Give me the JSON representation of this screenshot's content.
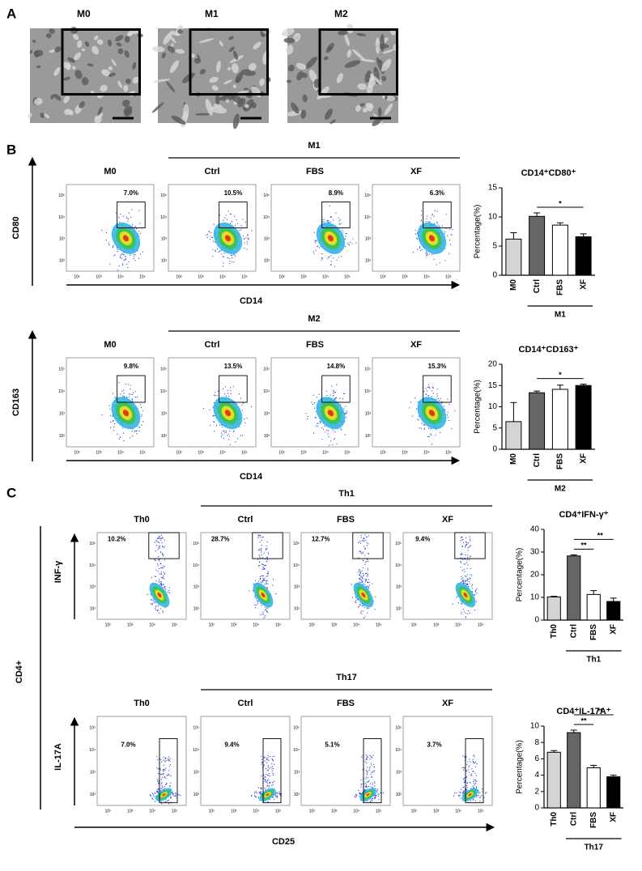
{
  "panel_a": {
    "label": "A",
    "images": [
      {
        "title": "M0"
      },
      {
        "title": "M1"
      },
      {
        "title": "M2"
      }
    ]
  },
  "panel_b": {
    "label": "B",
    "x_label": "CD14",
    "rows": [
      {
        "group": "M1",
        "y_label": "CD80",
        "plots": [
          {
            "title": "M0",
            "gate": "7.0%"
          },
          {
            "title": "Ctrl",
            "gate": "10.5%"
          },
          {
            "title": "FBS",
            "gate": "8.9%"
          },
          {
            "title": "XF",
            "gate": "6.3%"
          }
        ]
      },
      {
        "group": "M2",
        "y_label": "CD163",
        "plots": [
          {
            "title": "M0",
            "gate": "9.8%"
          },
          {
            "title": "Ctrl",
            "gate": "13.5%"
          },
          {
            "title": "FBS",
            "gate": "14.8%"
          },
          {
            "title": "XF",
            "gate": "15.3%"
          }
        ]
      }
    ]
  },
  "panel_c": {
    "label": "C",
    "side_label": "CD4+",
    "x_label": "CD25",
    "rows": [
      {
        "group": "Th1",
        "y_label": "INF-γ",
        "plots": [
          {
            "title": "Th0",
            "gate": "10.2%"
          },
          {
            "title": "Ctrl",
            "gate": "28.7%"
          },
          {
            "title": "FBS",
            "gate": "12.7%"
          },
          {
            "title": "XF",
            "gate": "9.4%"
          }
        ]
      },
      {
        "group": "Th17",
        "y_label": "IL-17A",
        "plots": [
          {
            "title": "Th0",
            "gate": "7.0%"
          },
          {
            "title": "Ctrl",
            "gate": "9.4%"
          },
          {
            "title": "FBS",
            "gate": "5.1%"
          },
          {
            "title": "XF",
            "gate": "3.7%"
          }
        ]
      }
    ]
  },
  "flow_ticks": [
    "10²",
    "10³",
    "10⁴",
    "10⁵"
  ],
  "chart_data": [
    {
      "type": "bar",
      "title": "CD14⁺CD80⁺",
      "y_label": "Percentage(%)",
      "categories": [
        "M0",
        "Ctrl",
        "FBS",
        "XF"
      ],
      "values": [
        6.2,
        10.1,
        8.6,
        6.6
      ],
      "errors": [
        1.1,
        0.6,
        0.4,
        0.5
      ],
      "colors": [
        "#d4d4d4",
        "#666666",
        "#ffffff",
        "#000000"
      ],
      "ylim": [
        0,
        15
      ],
      "yticks": [
        0,
        5,
        10,
        15
      ],
      "group": {
        "label": "M1",
        "categories": [
          "Ctrl",
          "FBS",
          "XF"
        ]
      },
      "significance": [
        {
          "label": "*",
          "pair": [
            "Ctrl",
            "XF"
          ]
        }
      ]
    },
    {
      "type": "bar",
      "title": "CD14⁺CD163⁺",
      "y_label": "Percentage(%)",
      "categories": [
        "M0",
        "Ctrl",
        "FBS",
        "XF"
      ],
      "values": [
        6.5,
        13.3,
        14.1,
        15.0
      ],
      "errors": [
        4.5,
        0.4,
        1.0,
        0.3
      ],
      "colors": [
        "#d4d4d4",
        "#666666",
        "#ffffff",
        "#000000"
      ],
      "ylim": [
        0,
        20
      ],
      "yticks": [
        0,
        5,
        10,
        15,
        20
      ],
      "group": {
        "label": "M2",
        "categories": [
          "Ctrl",
          "FBS",
          "XF"
        ]
      },
      "significance": [
        {
          "label": "*",
          "pair": [
            "Ctrl",
            "XF"
          ]
        }
      ]
    },
    {
      "type": "bar",
      "title": "CD4⁺IFN-γ⁺",
      "y_label": "Percentage(%)",
      "categories": [
        "Th0",
        "Ctrl",
        "FBS",
        "XF"
      ],
      "values": [
        10.2,
        28.3,
        11.3,
        8.2
      ],
      "errors": [
        0.3,
        0.5,
        1.7,
        1.5
      ],
      "colors": [
        "#d4d4d4",
        "#666666",
        "#ffffff",
        "#000000"
      ],
      "ylim": [
        0,
        40
      ],
      "yticks": [
        0,
        10,
        20,
        30,
        40
      ],
      "group": {
        "label": "Th1",
        "categories": [
          "Ctrl",
          "FBS",
          "XF"
        ]
      },
      "significance": [
        {
          "label": "**",
          "pair": [
            "Ctrl",
            "FBS"
          ]
        },
        {
          "label": "**",
          "pair": [
            "Ctrl",
            "XF"
          ]
        }
      ]
    },
    {
      "type": "bar",
      "title": "CD4⁺IL-17A⁺",
      "y_label": "Percentage(%)",
      "categories": [
        "Th0",
        "Ctrl",
        "FBS",
        "XF"
      ],
      "values": [
        6.8,
        9.2,
        4.9,
        3.8
      ],
      "errors": [
        0.2,
        0.3,
        0.3,
        0.2
      ],
      "colors": [
        "#d4d4d4",
        "#666666",
        "#ffffff",
        "#000000"
      ],
      "ylim": [
        0,
        10
      ],
      "yticks": [
        0,
        2,
        4,
        6,
        8,
        10
      ],
      "group": {
        "label": "Th17",
        "categories": [
          "Ctrl",
          "FBS",
          "XF"
        ]
      },
      "significance": [
        {
          "label": "**",
          "pair": [
            "Ctrl",
            "FBS"
          ]
        },
        {
          "label": "**",
          "pair": [
            "Ctrl",
            "XF"
          ]
        }
      ]
    }
  ]
}
